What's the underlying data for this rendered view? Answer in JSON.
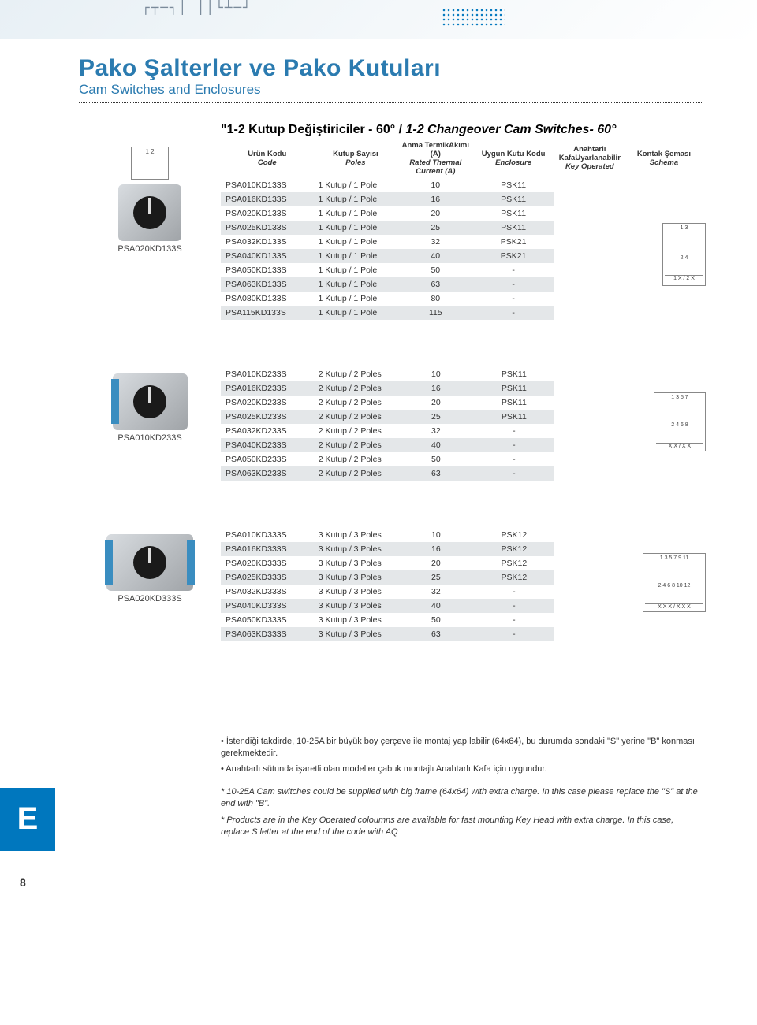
{
  "decoration": {
    "pattern": "┌┬─┐│ ││└┴─┘"
  },
  "header": {
    "title": "Pako Şalterler ve Pako Kutuları",
    "subtitle": "Cam Switches and Enclosures"
  },
  "section": {
    "title_main": "\"1-2 Kutup Değiştiriciler - 60° / ",
    "title_italic": "1-2 Changeover Cam Switches- 60°"
  },
  "columns": {
    "col1_a": "Ürün Kodu",
    "col1_b": "Code",
    "col2_a": "Kutup Sayısı",
    "col2_b": "Poles",
    "col3_a": "Anma Termik",
    "col3_b": "Akımı (A)",
    "col3_c": "Rated Thermal",
    "col3_d": "Current (A)",
    "col4_a": "Uygun Kutu Kodu",
    "col4_b": "Enclosure",
    "col5_a": "Anahtarlı Kafa",
    "col5_b": "Uyarlanabilir",
    "col5_c": "Key Operated",
    "col6_a": "Kontak Şeması",
    "col6_b": "Schema"
  },
  "table1": {
    "caption": "PSA020KD133S",
    "diagram_label": "1    2",
    "rows": [
      {
        "code": "PSA010KD133S",
        "poles": "1 Kutup / 1 Pole",
        "current": "10",
        "enc": "PSK11"
      },
      {
        "code": "PSA016KD133S",
        "poles": "1 Kutup / 1 Pole",
        "current": "16",
        "enc": "PSK11"
      },
      {
        "code": "PSA020KD133S",
        "poles": "1 Kutup / 1 Pole",
        "current": "20",
        "enc": "PSK11"
      },
      {
        "code": "PSA025KD133S",
        "poles": "1 Kutup / 1 Pole",
        "current": "25",
        "enc": "PSK11"
      },
      {
        "code": "PSA032KD133S",
        "poles": "1 Kutup / 1 Pole",
        "current": "32",
        "enc": "PSK21"
      },
      {
        "code": "PSA040KD133S",
        "poles": "1 Kutup / 1 Pole",
        "current": "40",
        "enc": "PSK21"
      },
      {
        "code": "PSA050KD133S",
        "poles": "1 Kutup / 1 Pole",
        "current": "50",
        "enc": "-"
      },
      {
        "code": "PSA063KD133S",
        "poles": "1 Kutup / 1 Pole",
        "current": "63",
        "enc": "-"
      },
      {
        "code": "PSA080KD133S",
        "poles": "1 Kutup / 1 Pole",
        "current": "80",
        "enc": "-"
      },
      {
        "code": "PSA115KD133S",
        "poles": "1 Kutup / 1 Pole",
        "current": "115",
        "enc": "-"
      }
    ],
    "schema": {
      "top": "1   3",
      "mid": "2   4",
      "bot": "1  X / 2  X"
    }
  },
  "table2": {
    "caption": "PSA010KD233S",
    "rows": [
      {
        "code": "PSA010KD233S",
        "poles": "2 Kutup / 2 Poles",
        "current": "10",
        "enc": "PSK11"
      },
      {
        "code": "PSA016KD233S",
        "poles": "2 Kutup / 2 Poles",
        "current": "16",
        "enc": "PSK11"
      },
      {
        "code": "PSA020KD233S",
        "poles": "2 Kutup / 2 Poles",
        "current": "20",
        "enc": "PSK11"
      },
      {
        "code": "PSA025KD233S",
        "poles": "2 Kutup / 2 Poles",
        "current": "25",
        "enc": "PSK11"
      },
      {
        "code": "PSA032KD233S",
        "poles": "2 Kutup / 2 Poles",
        "current": "32",
        "enc": "-"
      },
      {
        "code": "PSA040KD233S",
        "poles": "2 Kutup / 2 Poles",
        "current": "40",
        "enc": "-"
      },
      {
        "code": "PSA050KD233S",
        "poles": "2 Kutup / 2 Poles",
        "current": "50",
        "enc": "-"
      },
      {
        "code": "PSA063KD233S",
        "poles": "2 Kutup / 2 Poles",
        "current": "63",
        "enc": "-"
      }
    ],
    "schema": {
      "top": "1 3 5 7",
      "mid": "2 4 6 8",
      "bot": "X X / X X"
    }
  },
  "table3": {
    "caption": "PSA020KD333S",
    "rows": [
      {
        "code": "PSA010KD333S",
        "poles": "3 Kutup / 3 Poles",
        "current": "10",
        "enc": "PSK12"
      },
      {
        "code": "PSA016KD333S",
        "poles": "3 Kutup / 3 Poles",
        "current": "16",
        "enc": "PSK12"
      },
      {
        "code": "PSA020KD333S",
        "poles": "3 Kutup / 3 Poles",
        "current": "20",
        "enc": "PSK12"
      },
      {
        "code": "PSA025KD333S",
        "poles": "3 Kutup / 3 Poles",
        "current": "25",
        "enc": "PSK12"
      },
      {
        "code": "PSA032KD333S",
        "poles": "3 Kutup / 3 Poles",
        "current": "32",
        "enc": "-"
      },
      {
        "code": "PSA040KD333S",
        "poles": "3 Kutup / 3 Poles",
        "current": "40",
        "enc": "-"
      },
      {
        "code": "PSA050KD333S",
        "poles": "3 Kutup / 3 Poles",
        "current": "50",
        "enc": "-"
      },
      {
        "code": "PSA063KD333S",
        "poles": "3 Kutup / 3 Poles",
        "current": "63",
        "enc": "-"
      }
    ],
    "schema": {
      "top": "1 3 5 7 9 11",
      "mid": "2 4 6 8 10 12",
      "bot": "X X X / X X X"
    }
  },
  "notes": {
    "b1": "• İstendiği takdirde, 10-25A bir büyük boy çerçeve ile montaj yapılabilir (64x64), bu durumda sondaki \"S\" yerine \"B\" konması gerekmektedir.",
    "b2": "• Anahtarlı sütunda işaretli olan modeller çabuk montajlı Anahtarlı Kafa için uygundur.",
    "i1": "* 10-25A Cam switches could be supplied with big frame (64x64) with extra charge. In this case please replace the \"S\" at the end with \"B\".",
    "i2": "* Products are in the Key Operated coloumns are available for fast mounting Key Head with extra charge. In this case, replace S letter at the end of the code with AQ"
  },
  "side_tab": "E",
  "page_number": "8",
  "colors": {
    "brand_blue": "#2b7bb0",
    "tab_blue": "#0077be",
    "row_alt": "#e4e7e9",
    "text": "#333333",
    "border": "#888888"
  }
}
